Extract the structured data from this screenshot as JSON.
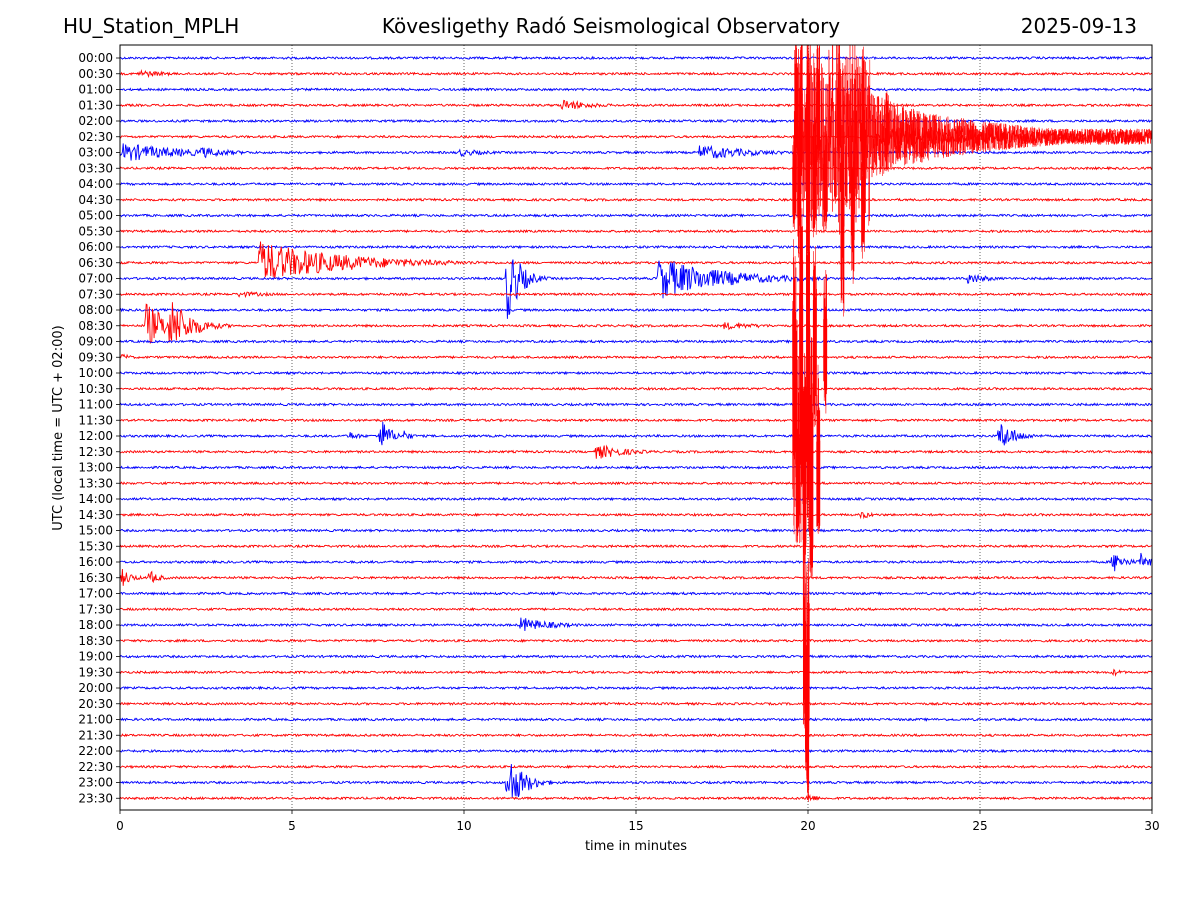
{
  "header": {
    "station": "HU_Station_MPLH",
    "observatory": "Kövesligethy Radó Seismological Observatory",
    "date": "2025-09-13"
  },
  "chart_data": {
    "type": "line",
    "title": "Kövesligethy Radó Seismological Observatory",
    "xlabel": "time in minutes",
    "ylabel": "UTC (local time = UTC + 02:00)",
    "xlim": [
      0,
      30
    ],
    "xticks": [
      0,
      5,
      10,
      15,
      20,
      25,
      30
    ],
    "grid_x": true,
    "row_labels": [
      "00:00",
      "00:30",
      "01:00",
      "01:30",
      "02:00",
      "02:30",
      "03:00",
      "03:30",
      "04:00",
      "04:30",
      "05:00",
      "05:30",
      "06:00",
      "06:30",
      "07:00",
      "07:30",
      "08:00",
      "08:30",
      "09:00",
      "09:30",
      "10:00",
      "10:30",
      "11:00",
      "11:30",
      "12:00",
      "12:30",
      "13:00",
      "13:30",
      "14:00",
      "14:30",
      "15:00",
      "15:30",
      "16:00",
      "16:30",
      "17:00",
      "17:30",
      "18:00",
      "18:30",
      "19:00",
      "19:30",
      "20:00",
      "20:30",
      "21:00",
      "21:30",
      "22:00",
      "22:30",
      "23:00",
      "23:30"
    ],
    "colors": {
      "even_rows": "#0000ff",
      "odd_rows": "#ff0000"
    },
    "events": [
      {
        "row": 1,
        "start": 0.5,
        "amp": 4,
        "dur": 1.5
      },
      {
        "row": 3,
        "start": 12.8,
        "amp": 6,
        "dur": 1.5
      },
      {
        "row": 6,
        "start": 0.0,
        "amp": 10,
        "dur": 3
      },
      {
        "row": 6,
        "start": 2.3,
        "amp": 6,
        "dur": 1.5
      },
      {
        "row": 6,
        "start": 9.8,
        "amp": 4,
        "dur": 1.5
      },
      {
        "row": 6,
        "start": 16.8,
        "amp": 8,
        "dur": 2.5
      },
      {
        "row": 13,
        "start": 4.0,
        "amp": 22,
        "dur": 4
      },
      {
        "row": 14,
        "start": 11.2,
        "amp": 45,
        "dur": 0.6
      },
      {
        "row": 14,
        "start": 15.6,
        "amp": 22,
        "dur": 3
      },
      {
        "row": 14,
        "start": 24.6,
        "amp": 6,
        "dur": 1
      },
      {
        "row": 15,
        "start": 3.4,
        "amp": 3,
        "dur": 2
      },
      {
        "row": 17,
        "start": 0.7,
        "amp": 25,
        "dur": 1.0
      },
      {
        "row": 17,
        "start": 1.4,
        "amp": 30,
        "dur": 1.0
      },
      {
        "row": 17,
        "start": 17.5,
        "amp": 4,
        "dur": 2
      },
      {
        "row": 19,
        "start": 0.0,
        "amp": 4,
        "dur": 0.5
      },
      {
        "row": 24,
        "start": 6.6,
        "amp": 5,
        "dur": 0.6
      },
      {
        "row": 24,
        "start": 7.5,
        "amp": 20,
        "dur": 0.5
      },
      {
        "row": 24,
        "start": 8.2,
        "amp": 6,
        "dur": 0.4
      },
      {
        "row": 24,
        "start": 25.5,
        "amp": 16,
        "dur": 0.8
      },
      {
        "row": 25,
        "start": 13.8,
        "amp": 8,
        "dur": 1.5
      },
      {
        "row": 29,
        "start": 21.5,
        "amp": 5,
        "dur": 0.5
      },
      {
        "row": 32,
        "start": 28.8,
        "amp": 12,
        "dur": 0.6
      },
      {
        "row": 32,
        "start": 29.6,
        "amp": 10,
        "dur": 0.5
      },
      {
        "row": 33,
        "start": 0.0,
        "amp": 10,
        "dur": 0.5
      },
      {
        "row": 33,
        "start": 0.8,
        "amp": 8,
        "dur": 0.5
      },
      {
        "row": 36,
        "start": 11.6,
        "amp": 8,
        "dur": 1.5
      },
      {
        "row": 39,
        "start": 28.8,
        "amp": 4,
        "dur": 0.5
      },
      {
        "row": 46,
        "start": 11.2,
        "amp": 30,
        "dur": 0.8
      },
      {
        "row": 47,
        "start": 19.9,
        "amp": 6,
        "dur": 0.5
      }
    ],
    "major_event": {
      "row": 5,
      "start": 19.6,
      "end": 30,
      "peak": 22.8
    },
    "major_spikes": [
      {
        "row": 5,
        "x": 19.65,
        "up": 100,
        "down": 18,
        "w": 0.08
      },
      {
        "row": 5,
        "x": 19.8,
        "up": 110,
        "down": 40,
        "w": 0.08
      },
      {
        "row": 5,
        "x": 20.0,
        "up": 110,
        "down": 60,
        "w": 0.08
      },
      {
        "row": 5,
        "x": 20.3,
        "up": 110,
        "down": 28,
        "w": 0.08
      },
      {
        "row": 5,
        "x": 20.9,
        "up": 110,
        "down": 22,
        "w": 0.08
      },
      {
        "row": 5,
        "x": 21.6,
        "up": 95,
        "down": 42,
        "w": 0.08
      },
      {
        "row": 5,
        "x": 22.3,
        "up": 50,
        "down": 35,
        "w": 0.08
      },
      {
        "row": 9,
        "x": 19.6,
        "up": 90,
        "down": 30,
        "w": 0.1
      },
      {
        "row": 9,
        "x": 19.75,
        "up": 100,
        "down": 60,
        "w": 0.1
      },
      {
        "row": 9,
        "x": 20.0,
        "up": 95,
        "down": 70,
        "w": 0.1
      },
      {
        "row": 9,
        "x": 20.2,
        "up": 85,
        "down": 40,
        "w": 0.1
      },
      {
        "row": 9,
        "x": 20.5,
        "up": 70,
        "down": 35,
        "w": 0.1
      },
      {
        "row": 9,
        "x": 21.0,
        "up": 55,
        "down": 120,
        "w": 0.1
      },
      {
        "row": 9,
        "x": 21.3,
        "up": 50,
        "down": 85,
        "w": 0.1
      },
      {
        "row": 9,
        "x": 21.6,
        "up": 40,
        "down": 60,
        "w": 0.1
      },
      {
        "row": 19,
        "x": 19.6,
        "up": 120,
        "down": 180,
        "w": 0.1
      },
      {
        "row": 19,
        "x": 19.8,
        "up": 150,
        "down": 200,
        "w": 0.1
      },
      {
        "row": 19,
        "x": 20.0,
        "up": 160,
        "down": 180,
        "w": 0.1
      },
      {
        "row": 19,
        "x": 20.2,
        "up": 120,
        "down": 80,
        "w": 0.1
      },
      {
        "row": 19,
        "x": 20.5,
        "up": 90,
        "down": 60,
        "w": 0.1
      },
      {
        "row": 29,
        "x": 19.7,
        "up": 200,
        "down": 30,
        "w": 0.1
      },
      {
        "row": 29,
        "x": 19.9,
        "up": 210,
        "down": 60,
        "w": 0.1
      },
      {
        "row": 29,
        "x": 20.1,
        "up": 200,
        "down": 70,
        "w": 0.1
      },
      {
        "row": 29,
        "x": 20.3,
        "up": 150,
        "down": 20,
        "w": 0.1
      },
      {
        "row": 39,
        "x": 19.9,
        "up": 140,
        "down": 60,
        "w": 0.08
      },
      {
        "row": 39,
        "x": 20.0,
        "up": 120,
        "down": 130,
        "w": 0.08
      },
      {
        "row": 41,
        "x": 19.95,
        "up": 60,
        "down": 80,
        "w": 0.06
      }
    ]
  }
}
